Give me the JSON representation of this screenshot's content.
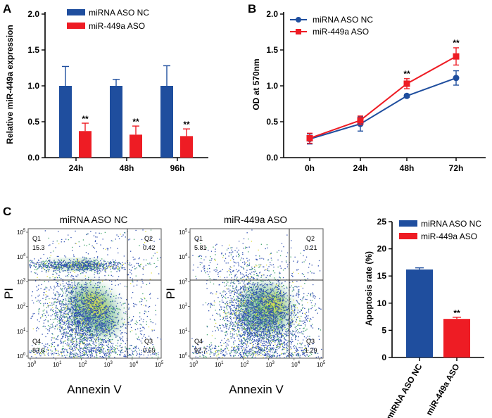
{
  "colors": {
    "nc": "#1f4e9e",
    "aso": "#ee1c24",
    "axis": "#000000",
    "quad": "#333333",
    "dot_blue": "#2f4fb0",
    "dot_green": "#3fa36a",
    "dot_yellow": "#e0de3a"
  },
  "chart_data": [
    {
      "panel": "A",
      "type": "bar",
      "ylabel": "Relative miR-449a expression",
      "ylim": [
        0,
        2.0
      ],
      "yticks": [
        "0.0",
        "0.5",
        "1.0",
        "1.5",
        "2.0"
      ],
      "categories": [
        "24h",
        "48h",
        "96h"
      ],
      "legend": [
        "miRNA ASO NC",
        "miR-449a ASO"
      ],
      "series": [
        {
          "name": "miRNA ASO NC",
          "values": [
            1.0,
            1.0,
            1.0
          ],
          "errors": [
            0.27,
            0.09,
            0.28
          ],
          "sig": [
            "",
            "",
            ""
          ]
        },
        {
          "name": "miR-449a ASO",
          "values": [
            0.37,
            0.32,
            0.3
          ],
          "errors": [
            0.11,
            0.12,
            0.1
          ],
          "sig": [
            "**",
            "**",
            "**"
          ]
        }
      ]
    },
    {
      "panel": "B",
      "type": "line",
      "ylabel": "OD at 570nm",
      "ylim": [
        0,
        2.0
      ],
      "yticks": [
        "0.0",
        "0.5",
        "1.0",
        "1.5",
        "2.0"
      ],
      "categories": [
        "0h",
        "24h",
        "48h",
        "72h"
      ],
      "legend": [
        "miRNA ASO NC",
        "miR-449a ASO"
      ],
      "series": [
        {
          "name": "miRNA ASO NC",
          "values": [
            0.26,
            0.47,
            0.86,
            1.11
          ],
          "errors": [
            0.07,
            0.1,
            0.02,
            0.1
          ]
        },
        {
          "name": "miR-449a ASO",
          "values": [
            0.27,
            0.52,
            1.03,
            1.41
          ],
          "errors": [
            0.07,
            0.06,
            0.07,
            0.12
          ]
        }
      ],
      "sig": [
        "",
        "",
        "**",
        "**"
      ]
    },
    {
      "panel": "C",
      "type": "scatter",
      "plots": [
        {
          "title": "miRNA ASO NC",
          "quadrants": {
            "Q1": "15.3",
            "Q2": "0.42",
            "Q3": "0.65",
            "Q4": "83.6"
          }
        },
        {
          "title": "miR-449a ASO",
          "quadrants": {
            "Q1": "5.81",
            "Q2": "0.21",
            "Q3": "1.29",
            "Q4": "92.7"
          }
        }
      ],
      "xlabel": "Annexin V",
      "ylabel": "PI",
      "tick_base": "10",
      "tick_exps": [
        "0",
        "1",
        "2",
        "3",
        "4",
        "5"
      ]
    },
    {
      "panel": "C",
      "type": "bar",
      "ylabel": "Apoptosis rate (%)",
      "ylim": [
        0,
        25
      ],
      "yticks": [
        "0",
        "5",
        "10",
        "15",
        "20",
        "25"
      ],
      "categories": [
        "miRNA ASO NC",
        "miR-449a ASO"
      ],
      "legend": [
        "miRNA ASO NC",
        "miR-449a ASO"
      ],
      "values": [
        16.2,
        7.1
      ],
      "errors": [
        0.3,
        0.3
      ],
      "sig": [
        "",
        "**"
      ]
    }
  ],
  "panel_labels": {
    "a": "A",
    "b": "B",
    "c": "C"
  }
}
